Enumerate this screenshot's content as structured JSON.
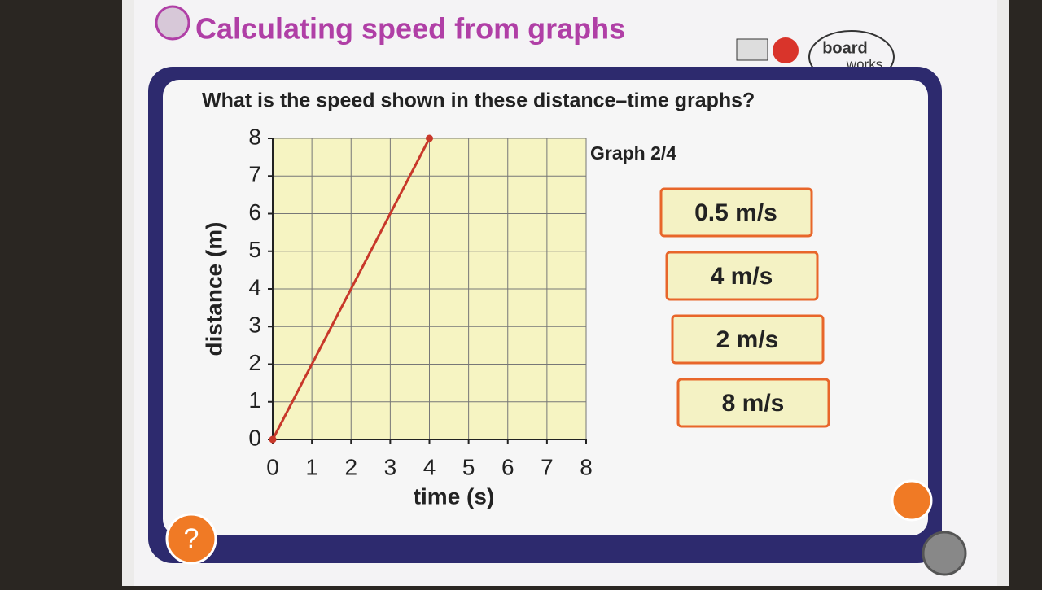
{
  "header": {
    "title": "Calculating speed from graphs",
    "logo_top": "board",
    "logo_bottom": "works"
  },
  "question": "What is the speed shown in these distance–time graphs?",
  "quiz": {
    "graph_label": "Graph 2/4",
    "answers": [
      "0.5 m/s",
      "4 m/s",
      "2 m/s",
      "8 m/s"
    ],
    "help": "?"
  },
  "chart_data": {
    "type": "line",
    "xlabel": "time (s)",
    "ylabel": "distance (m)",
    "x": [
      0,
      4
    ],
    "series": [
      {
        "color": "#c8382a",
        "values": [
          0,
          8
        ]
      }
    ],
    "xlim": [
      0,
      8
    ],
    "ylim": [
      0,
      8
    ],
    "xticks": [
      0,
      1,
      2,
      3,
      4,
      5,
      6,
      7,
      8
    ],
    "yticks": [
      0,
      1,
      2,
      3,
      4,
      5,
      6,
      7,
      8
    ],
    "grid": true
  }
}
